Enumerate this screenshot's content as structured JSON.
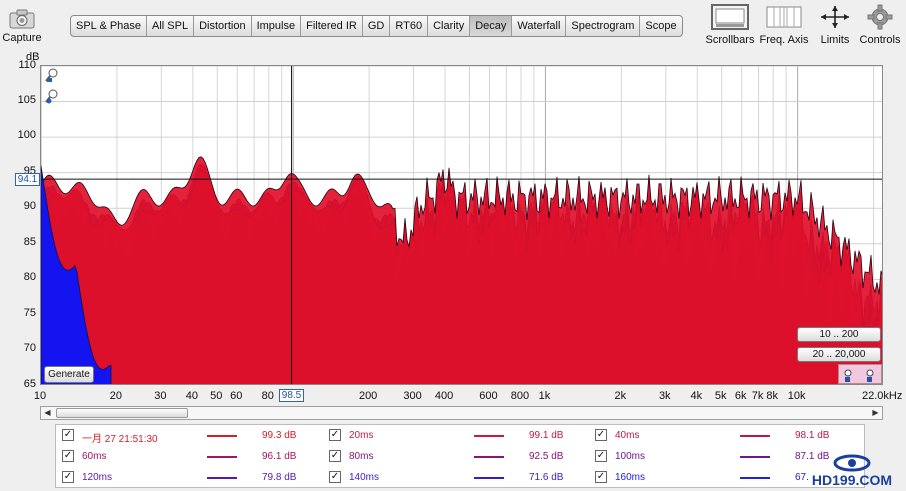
{
  "toolbar": {
    "capture_label": "Capture",
    "tabs": [
      {
        "label": "SPL & Phase",
        "active": false
      },
      {
        "label": "All SPL",
        "active": false
      },
      {
        "label": "Distortion",
        "active": false
      },
      {
        "label": "Impulse",
        "active": false
      },
      {
        "label": "Filtered IR",
        "active": false
      },
      {
        "label": "GD",
        "active": false
      },
      {
        "label": "RT60",
        "active": false
      },
      {
        "label": "Clarity",
        "active": false
      },
      {
        "label": "Decay",
        "active": true
      },
      {
        "label": "Waterfall",
        "active": false
      },
      {
        "label": "Spectrogram",
        "active": false
      },
      {
        "label": "Scope",
        "active": false
      }
    ],
    "scrollbars_label": "Scrollbars",
    "freq_axis_label": "Freq. Axis",
    "limits_label": "Limits",
    "controls_label": "Controls"
  },
  "plot": {
    "y_unit": "dB",
    "y_ticks": [
      "110",
      "105",
      "100",
      "95",
      "90",
      "85",
      "80",
      "75",
      "70",
      "65"
    ],
    "x_ticks": [
      "10",
      "20",
      "30",
      "40",
      "50",
      "60",
      "80",
      "200",
      "300",
      "400",
      "600",
      "800",
      "1k",
      "2k",
      "3k",
      "4k",
      "5k",
      "6k",
      "7k",
      "8k",
      "10k"
    ],
    "x_end_label": "22.0kHz",
    "cursor_y": "94.1",
    "cursor_x": "98.5",
    "generate_label": "Generate",
    "range_buttons": [
      "10 .. 200",
      "20 .. 20,000"
    ]
  },
  "legend": {
    "rows": [
      [
        {
          "name": "一月 27 21:51:30",
          "value": "99.3 dB",
          "color": "#d0202c"
        },
        {
          "name": "20ms",
          "value": "99.1 dB",
          "color": "#c81a40"
        },
        {
          "name": "40ms",
          "value": "98.1 dB",
          "color": "#b8184e"
        }
      ],
      [
        {
          "name": "60ms",
          "value": "96.1 dB",
          "color": "#a01660"
        },
        {
          "name": "80ms",
          "value": "92.5 dB",
          "color": "#88147a"
        },
        {
          "name": "100ms",
          "value": "87.1 dB",
          "color": "#701490"
        }
      ],
      [
        {
          "name": "120ms",
          "value": "79.8 dB",
          "color": "#5a18a8"
        },
        {
          "name": "140ms",
          "value": "71.6 dB",
          "color": "#3c1cc0"
        },
        {
          "name": "160ms",
          "value": "67.",
          "color": "#2020e0"
        }
      ]
    ]
  },
  "watermark": "HD199.COM",
  "colors": {
    "curve_front": "#e0102a",
    "curve_back": "#1010f0",
    "panel_bg": "#efefef"
  }
}
